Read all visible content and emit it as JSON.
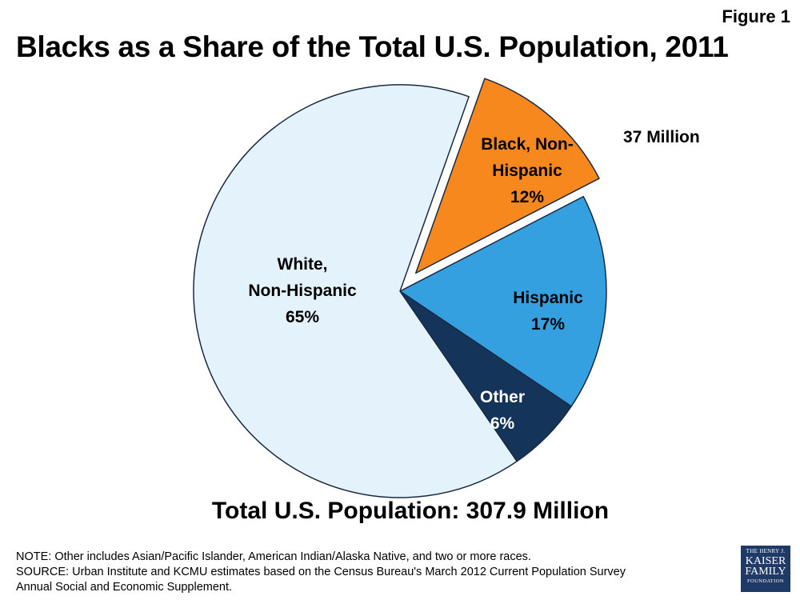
{
  "figure_label": "Figure 1",
  "title": "Blacks as a Share of the Total U.S. Population, 2011",
  "callout": "37 Million",
  "total_label": "Total U.S. Population: 307.9 Million",
  "notes": [
    "NOTE: Other includes Asian/Pacific Islander, American Indian/Alaska Native, and two or more races.",
    "SOURCE: Urban Institute and KCMU estimates based on the Census Bureau's March 2012 Current Population Survey",
    "Annual Social and Economic Supplement."
  ],
  "logo": {
    "line1": "THE HENRY J.",
    "line2": "KAISER",
    "line3": "FAMILY",
    "line4": "FOUNDATION"
  },
  "chart_data": {
    "type": "pie",
    "title": "Blacks as a Share of the Total U.S. Population, 2011",
    "slices": [
      {
        "key": "black",
        "label_lines": [
          "Black, Non-",
          "Hispanic",
          "12%"
        ],
        "value": 12,
        "color": "#f7881e",
        "exploded": true
      },
      {
        "key": "hispanic",
        "label_lines": [
          "Hispanic",
          "17%"
        ],
        "value": 17,
        "color": "#35a0e0",
        "exploded": false
      },
      {
        "key": "other",
        "label_lines": [
          "Other",
          "6%"
        ],
        "value": 6,
        "color": "#14345a",
        "exploded": false,
        "label_color": "#ffffff"
      },
      {
        "key": "white",
        "label_lines": [
          "White,",
          "Non-Hispanic",
          "65%"
        ],
        "value": 65,
        "color": "#e3f2fb",
        "exploded": false
      }
    ],
    "start_angle_deg": 19.5,
    "direction": "clockwise"
  }
}
